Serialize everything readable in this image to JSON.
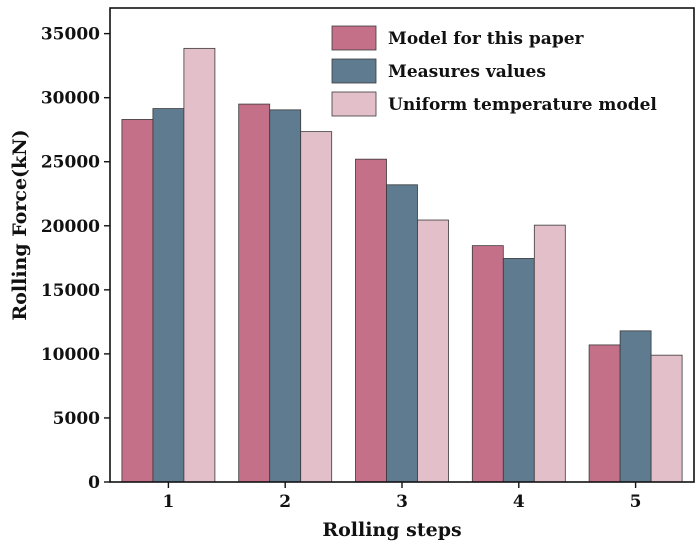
{
  "chart_data": {
    "type": "bar",
    "title": "",
    "xlabel": "Rolling steps",
    "ylabel": "Rolling Force(kN)",
    "categories": [
      "1",
      "2",
      "3",
      "4",
      "5"
    ],
    "ylim": [
      0,
      37000
    ],
    "yticks": [
      0,
      5000,
      10000,
      15000,
      20000,
      25000,
      30000,
      35000
    ],
    "legend_position": "top-right",
    "grid": false,
    "series": [
      {
        "name": "Model for this paper",
        "color": "#c47089",
        "values": [
          28300,
          29500,
          25200,
          18450,
          10700
        ]
      },
      {
        "name": "Measures values",
        "color": "#5e7b90",
        "values": [
          29150,
          29050,
          23200,
          17450,
          11800
        ]
      },
      {
        "name": "Uniform temperature model",
        "color": "#e3bfca",
        "values": [
          33850,
          27350,
          20450,
          20050,
          9900
        ]
      }
    ]
  }
}
